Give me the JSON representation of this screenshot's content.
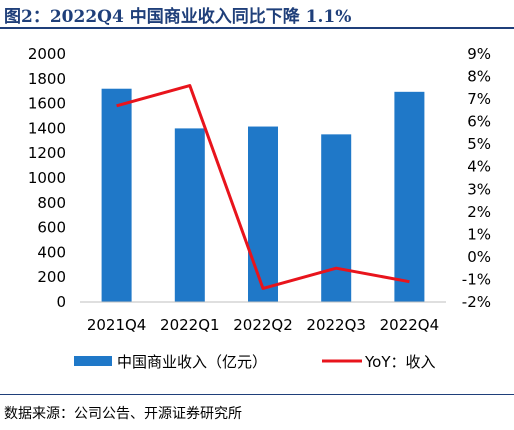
{
  "header": {
    "title": "图2：2022Q4 中国商业收入同比下降 1.1%"
  },
  "footer": {
    "source": "数据来源：公司公告、开源证券研究所"
  },
  "chart_data": {
    "type": "bar+line",
    "categories": [
      "2021Q4",
      "2022Q1",
      "2022Q2",
      "2022Q3",
      "2022Q4"
    ],
    "series": [
      {
        "name": "中国商业收入（亿元）",
        "type": "bar",
        "axis": "left",
        "color": "#1f78c8",
        "values": [
          1720,
          1400,
          1415,
          1352,
          1695
        ]
      },
      {
        "name": "YoY：收入",
        "type": "line",
        "axis": "right",
        "color": "#e8141c",
        "values": [
          6.7,
          7.6,
          -1.4,
          -0.5,
          -1.1
        ]
      }
    ],
    "left_axis": {
      "ylim": [
        0,
        2000
      ],
      "ticks": [
        "0",
        "200",
        "400",
        "600",
        "800",
        "1000",
        "1200",
        "1400",
        "1600",
        "1800",
        "2000"
      ]
    },
    "right_axis": {
      "ylim": [
        -2,
        9
      ],
      "ticks": [
        "-2%",
        "-1%",
        "0%",
        "1%",
        "2%",
        "3%",
        "4%",
        "5%",
        "6%",
        "7%",
        "8%",
        "9%"
      ]
    },
    "grid": false,
    "legend_position": "bottom"
  }
}
